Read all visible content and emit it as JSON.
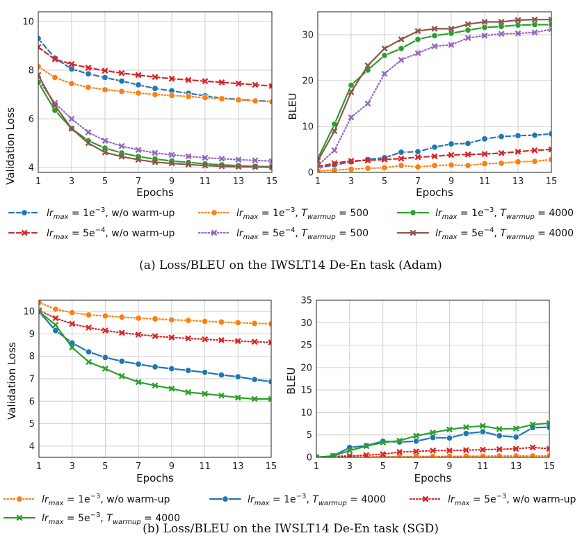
{
  "colors": {
    "blue": "#1f77b4",
    "orange": "#ff7f0e",
    "green": "#2ca02c",
    "red": "#d62728",
    "purple": "#9467bd",
    "brown": "#8c564b"
  },
  "captions": {
    "a": "(a)  Loss/BLEU on the IWSLT14 De-En task (Adam)",
    "b": "(b)  Loss/BLEU on the IWSLT14 De-En task (SGD)"
  },
  "legend_a": [
    {
      "id": "s1",
      "lr_base": "1e",
      "lr_exp": "−3",
      "rest": ", w/o warm-up"
    },
    {
      "id": "s2",
      "lr_base": "5e",
      "lr_exp": "−4",
      "rest": ", w/o warm-up"
    },
    {
      "id": "s3",
      "lr_base": "1e",
      "lr_exp": "−3",
      "rest": ", ",
      "tw": "500"
    },
    {
      "id": "s4",
      "lr_base": "5e",
      "lr_exp": "−4",
      "rest": ", ",
      "tw": "500"
    },
    {
      "id": "s5",
      "lr_base": "1e",
      "lr_exp": "−3",
      "rest": ", ",
      "tw": "4000"
    },
    {
      "id": "s6",
      "lr_base": "5e",
      "lr_exp": "−4",
      "rest": ", ",
      "tw": "4000"
    }
  ],
  "legend_b": [
    {
      "id": "b1",
      "lr_base": "1e",
      "lr_exp": "−3",
      "rest": ", w/o warm-up"
    },
    {
      "id": "b2",
      "lr_base": "1e",
      "lr_exp": "−3",
      "rest": ", ",
      "tw": "4000"
    },
    {
      "id": "b3",
      "lr_base": "5e",
      "lr_exp": "−3",
      "rest": ", w/o warm-up"
    },
    {
      "id": "b4",
      "lr_base": "5e",
      "lr_exp": "−3",
      "rest": ", ",
      "tw": "4000"
    }
  ],
  "legend_text": {
    "lr": "lr",
    "max": "max",
    "eq": " = ",
    "T": "T",
    "warmup": "warmup"
  },
  "chart_data": [
    {
      "id": "a_loss",
      "type": "line",
      "xlabel": "Epochs",
      "ylabel": "Validation Loss",
      "xlim": [
        1,
        15
      ],
      "ylim": [
        3.8,
        10.4
      ],
      "xticks": [
        1,
        3,
        5,
        7,
        9,
        11,
        13,
        15
      ],
      "yticks": [
        4,
        6,
        8,
        10
      ],
      "x": [
        1,
        2,
        3,
        4,
        5,
        6,
        7,
        8,
        9,
        10,
        11,
        12,
        13,
        14,
        15
      ],
      "series": [
        {
          "ref": "s1",
          "color": "blue",
          "style": "dash",
          "marker": "circle",
          "values": [
            9.3,
            8.5,
            8.05,
            7.85,
            7.7,
            7.55,
            7.4,
            7.25,
            7.15,
            7.05,
            6.95,
            6.85,
            6.8,
            6.75,
            6.72
          ]
        },
        {
          "ref": "s2",
          "color": "red",
          "style": "dash",
          "marker": "x",
          "values": [
            8.95,
            8.45,
            8.25,
            8.1,
            7.98,
            7.88,
            7.8,
            7.72,
            7.65,
            7.6,
            7.55,
            7.5,
            7.45,
            7.4,
            7.35
          ]
        },
        {
          "ref": "s3",
          "color": "orange",
          "style": "dot",
          "marker": "circle",
          "values": [
            8.15,
            7.7,
            7.45,
            7.3,
            7.2,
            7.13,
            7.06,
            7.0,
            6.96,
            6.92,
            6.87,
            6.83,
            6.78,
            6.74,
            6.7
          ]
        },
        {
          "ref": "s4",
          "color": "purple",
          "style": "dot",
          "marker": "x",
          "values": [
            7.6,
            6.65,
            6.0,
            5.45,
            5.1,
            4.88,
            4.72,
            4.6,
            4.52,
            4.46,
            4.4,
            4.36,
            4.32,
            4.29,
            4.26
          ]
        },
        {
          "ref": "s5",
          "color": "green",
          "style": "solid",
          "marker": "circle",
          "values": [
            7.5,
            6.35,
            5.6,
            5.1,
            4.8,
            4.6,
            4.45,
            4.35,
            4.27,
            4.21,
            4.15,
            4.11,
            4.07,
            4.05,
            4.03
          ]
        },
        {
          "ref": "s6",
          "color": "brown",
          "style": "solid",
          "marker": "x",
          "values": [
            7.8,
            6.55,
            5.6,
            5.0,
            4.62,
            4.45,
            4.32,
            4.22,
            4.17,
            4.12,
            4.08,
            4.05,
            4.03,
            4.02,
            4.01
          ]
        }
      ]
    },
    {
      "id": "a_bleu",
      "type": "line",
      "xlabel": "Epochs",
      "ylabel": "BLEU",
      "xlim": [
        1,
        15
      ],
      "ylim": [
        0,
        35
      ],
      "xticks": [
        1,
        3,
        5,
        7,
        9,
        11,
        13,
        15
      ],
      "yticks": [
        0,
        10,
        20,
        30
      ],
      "x": [
        1,
        2,
        3,
        4,
        5,
        6,
        7,
        8,
        9,
        10,
        11,
        12,
        13,
        14,
        15
      ],
      "series": [
        {
          "ref": "s1",
          "color": "blue",
          "style": "dash",
          "marker": "circle",
          "values": [
            1.0,
            1.6,
            2.3,
            2.8,
            3.2,
            4.4,
            4.5,
            5.5,
            6.2,
            6.3,
            7.3,
            7.8,
            8.0,
            8.1,
            8.4
          ]
        },
        {
          "ref": "s2",
          "color": "red",
          "style": "dash",
          "marker": "x",
          "values": [
            1.2,
            2.0,
            2.5,
            2.6,
            2.8,
            3.0,
            3.3,
            3.5,
            3.8,
            3.9,
            4.0,
            4.2,
            4.5,
            4.8,
            5.0
          ]
        },
        {
          "ref": "s3",
          "color": "orange",
          "style": "dot",
          "marker": "circle",
          "values": [
            0.3,
            0.5,
            0.7,
            0.9,
            1.0,
            1.5,
            1.2,
            1.5,
            1.6,
            1.5,
            1.9,
            2.0,
            2.3,
            2.4,
            2.8
          ]
        },
        {
          "ref": "s4",
          "color": "purple",
          "style": "dot",
          "marker": "x",
          "values": [
            1.5,
            4.8,
            12.0,
            15.0,
            21.5,
            24.5,
            26.0,
            27.5,
            27.8,
            29.3,
            29.8,
            30.2,
            30.3,
            30.5,
            31.2
          ]
        },
        {
          "ref": "s5",
          "color": "green",
          "style": "solid",
          "marker": "circle",
          "values": [
            3.0,
            10.5,
            19.0,
            22.3,
            25.5,
            27.0,
            29.0,
            29.8,
            30.3,
            31.0,
            31.6,
            31.8,
            32.1,
            32.2,
            32.2
          ]
        },
        {
          "ref": "s6",
          "color": "brown",
          "style": "solid",
          "marker": "x",
          "values": [
            2.5,
            9.0,
            17.5,
            23.3,
            27.0,
            29.0,
            30.8,
            31.3,
            31.3,
            32.3,
            32.8,
            32.8,
            33.2,
            33.3,
            33.3
          ]
        }
      ]
    },
    {
      "id": "b_loss",
      "type": "line",
      "xlabel": "Epochs",
      "ylabel": "Validation Loss",
      "xlim": [
        1,
        15
      ],
      "ylim": [
        3.5,
        10.5
      ],
      "xticks": [
        1,
        3,
        5,
        7,
        9,
        11,
        13,
        15
      ],
      "yticks": [
        4,
        5,
        6,
        7,
        8,
        9,
        10
      ],
      "x": [
        1,
        2,
        3,
        4,
        5,
        6,
        7,
        8,
        9,
        10,
        11,
        12,
        13,
        14,
        15
      ],
      "series": [
        {
          "ref": "b1",
          "color": "orange",
          "style": "dot",
          "marker": "circle",
          "values": [
            10.4,
            10.1,
            9.95,
            9.85,
            9.8,
            9.75,
            9.7,
            9.67,
            9.63,
            9.6,
            9.56,
            9.53,
            9.5,
            9.47,
            9.45
          ]
        },
        {
          "ref": "b3",
          "color": "red",
          "style": "dot",
          "marker": "x",
          "values": [
            10.05,
            9.7,
            9.45,
            9.28,
            9.15,
            9.05,
            8.97,
            8.9,
            8.84,
            8.8,
            8.76,
            8.72,
            8.68,
            8.65,
            8.62
          ]
        },
        {
          "ref": "b2",
          "color": "blue",
          "style": "solid",
          "marker": "circle",
          "values": [
            10.0,
            9.15,
            8.6,
            8.2,
            7.95,
            7.78,
            7.65,
            7.53,
            7.45,
            7.37,
            7.29,
            7.17,
            7.09,
            6.97,
            6.87
          ]
        },
        {
          "ref": "b4",
          "color": "green",
          "style": "solid",
          "marker": "x",
          "values": [
            10.0,
            9.4,
            8.4,
            7.75,
            7.45,
            7.12,
            6.85,
            6.7,
            6.56,
            6.4,
            6.33,
            6.25,
            6.16,
            6.1,
            6.1
          ]
        }
      ]
    },
    {
      "id": "b_bleu",
      "type": "line",
      "xlabel": "Epochs",
      "ylabel": "BLEU",
      "xlim": [
        1,
        15
      ],
      "ylim": [
        0,
        35
      ],
      "xticks": [
        1,
        3,
        5,
        7,
        9,
        11,
        13,
        15
      ],
      "yticks": [
        0,
        5,
        10,
        15,
        20,
        25,
        30,
        35
      ],
      "x": [
        1,
        2,
        3,
        4,
        5,
        6,
        7,
        8,
        9,
        10,
        11,
        12,
        13,
        14,
        15
      ],
      "series": [
        {
          "ref": "b1",
          "color": "orange",
          "style": "dot",
          "marker": "circle",
          "values": [
            0.0,
            0.05,
            0.1,
            0.1,
            0.15,
            0.15,
            0.2,
            0.2,
            0.2,
            0.25,
            0.25,
            0.3,
            0.3,
            0.3,
            0.3
          ]
        },
        {
          "ref": "b3",
          "color": "red",
          "style": "dot",
          "marker": "x",
          "values": [
            0.05,
            0.2,
            0.3,
            0.5,
            0.7,
            1.2,
            1.3,
            1.5,
            1.5,
            1.6,
            1.7,
            1.8,
            1.9,
            2.2,
            1.9
          ]
        },
        {
          "ref": "b2",
          "color": "blue",
          "style": "solid",
          "marker": "circle",
          "values": [
            0.0,
            0.3,
            2.2,
            2.6,
            3.6,
            3.4,
            3.6,
            4.4,
            4.3,
            5.3,
            5.7,
            4.8,
            4.5,
            6.6,
            6.7
          ]
        },
        {
          "ref": "b4",
          "color": "green",
          "style": "solid",
          "marker": "x",
          "values": [
            0.0,
            0.3,
            1.5,
            2.5,
            3.3,
            3.7,
            4.8,
            5.5,
            6.2,
            6.7,
            7.0,
            6.3,
            6.4,
            7.3,
            7.6
          ]
        }
      ]
    }
  ]
}
